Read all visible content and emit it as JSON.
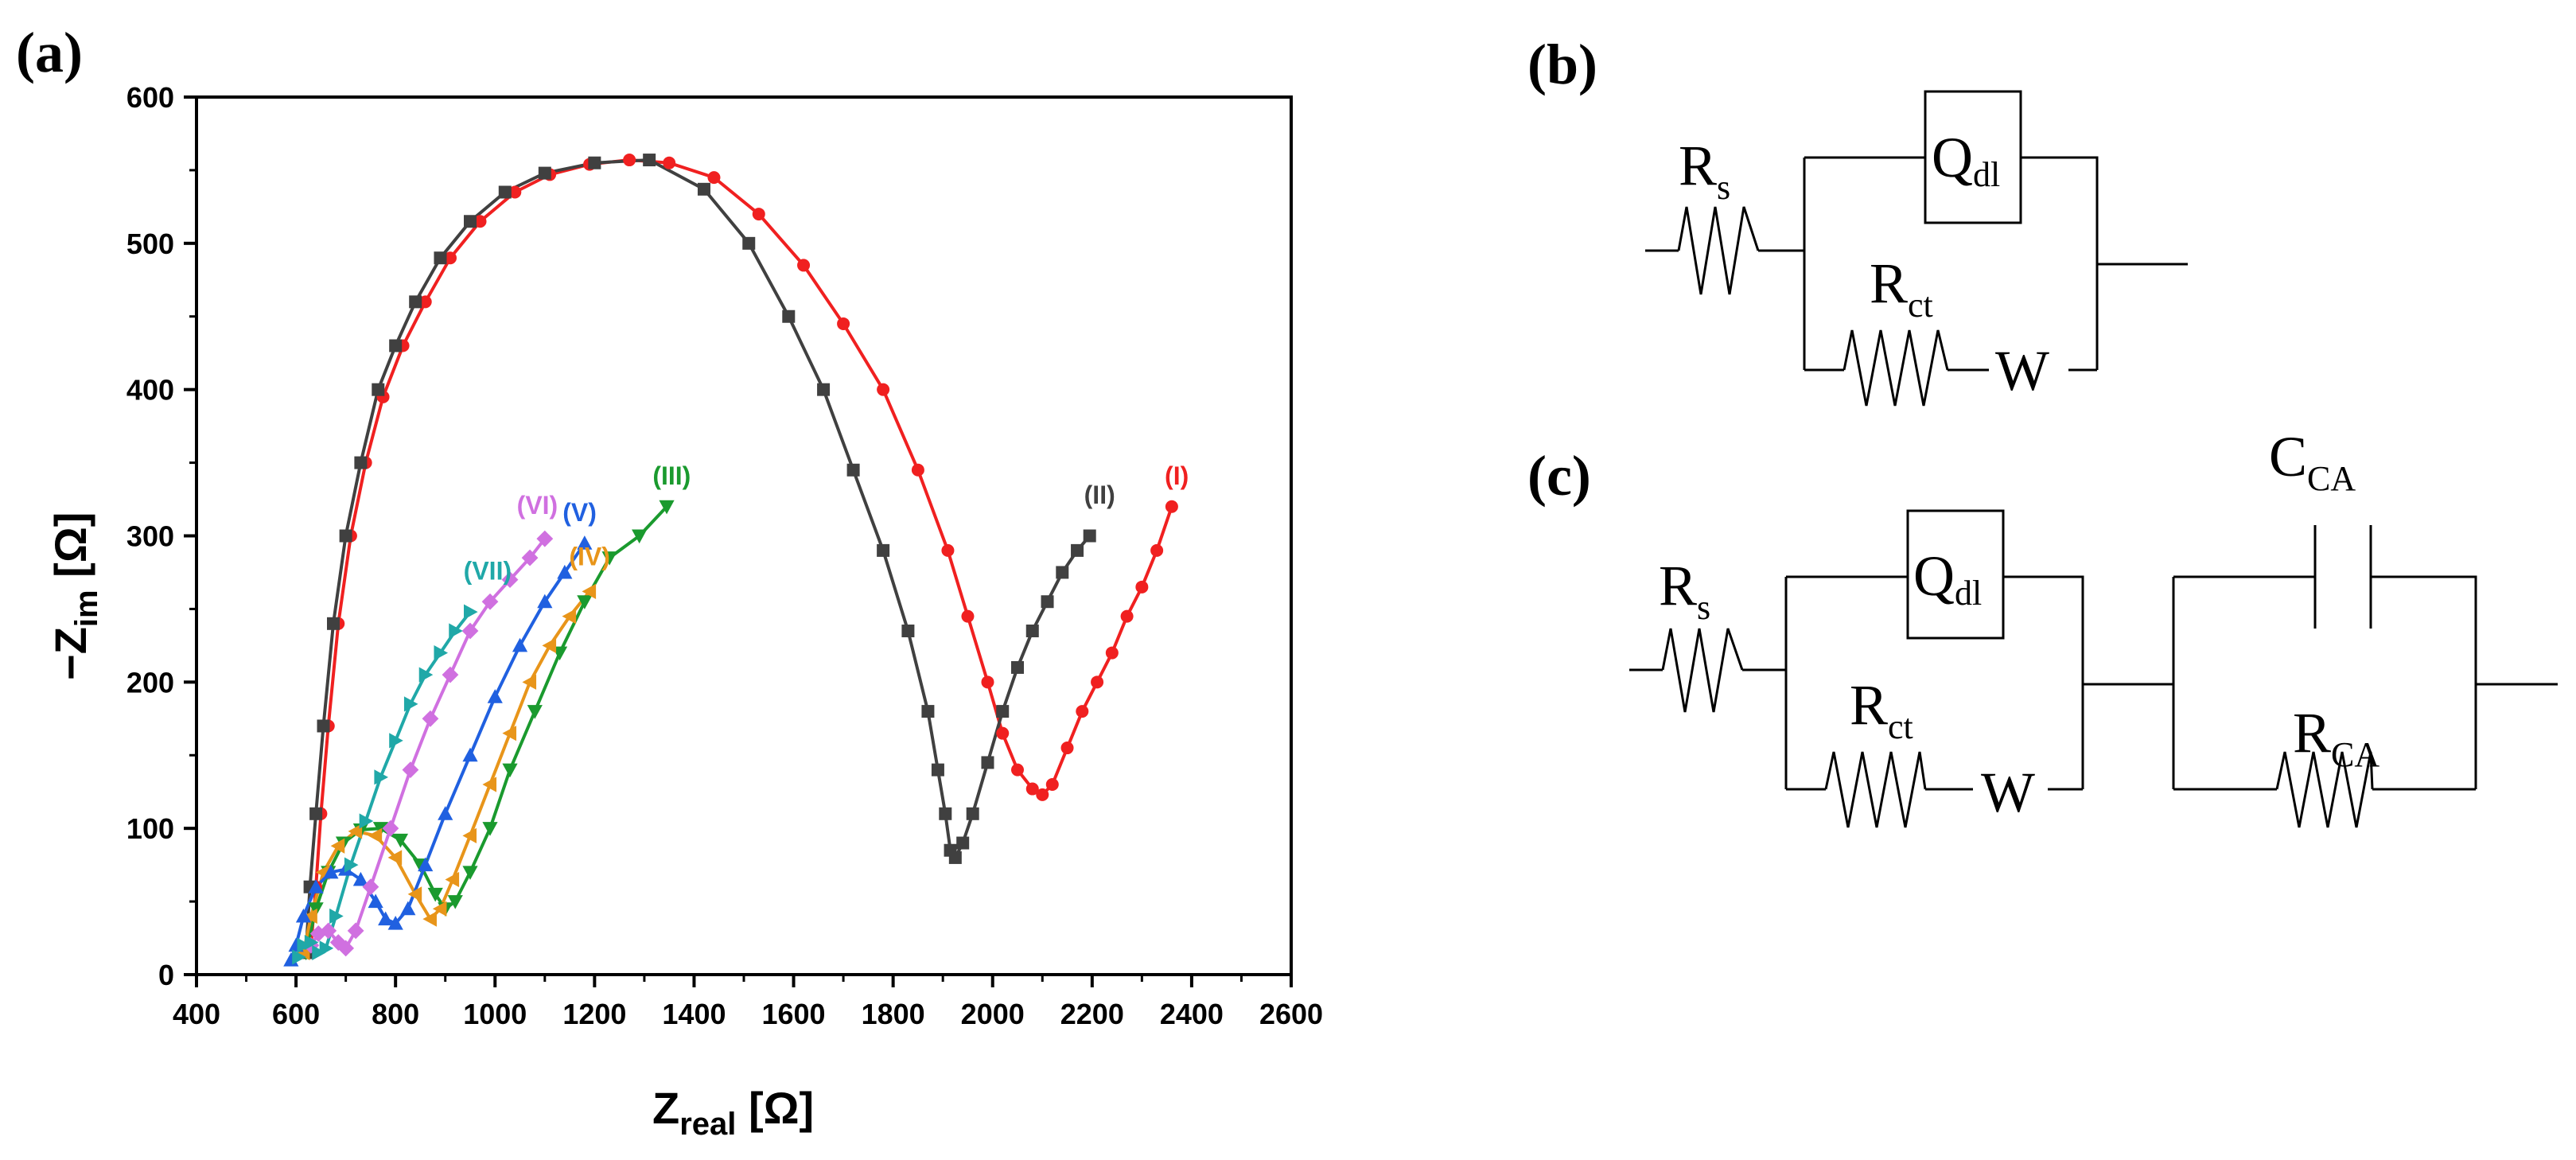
{
  "panels": {
    "a": "(a)",
    "b": "(b)",
    "c": "(c)"
  },
  "circuit_b": {
    "Rs": {
      "main": "R",
      "sub": "s"
    },
    "Qdl": {
      "main": "Q",
      "sub": "dl"
    },
    "Rct": {
      "main": "R",
      "sub": "ct"
    },
    "W": "W"
  },
  "circuit_c": {
    "Rs": {
      "main": "R",
      "sub": "s"
    },
    "Qdl": {
      "main": "Q",
      "sub": "dl"
    },
    "Rct": {
      "main": "R",
      "sub": "ct"
    },
    "W": "W",
    "CCA": {
      "main": "C",
      "sub": "CA"
    },
    "RCA": {
      "main": "R",
      "sub": "CA"
    }
  },
  "chart_data": {
    "type": "scatter",
    "title": "",
    "xlabel": {
      "main": "Z",
      "sub": "real",
      "unit": " [Ω]"
    },
    "ylabel": {
      "main": "−Z",
      "sub": "im",
      "unit": " [Ω]"
    },
    "xlim": [
      400,
      2600
    ],
    "ylim": [
      0,
      600
    ],
    "xticks": [
      400,
      600,
      800,
      1000,
      1200,
      1400,
      1600,
      1800,
      2000,
      2200,
      2400,
      2600
    ],
    "yticks": [
      0,
      100,
      200,
      300,
      400,
      500,
      600
    ],
    "series": [
      {
        "name": "(I)",
        "color": "#f02020",
        "marker": "circle",
        "label_pos": [
          2370,
          335
        ],
        "points": [
          [
            630,
            20
          ],
          [
            640,
            60
          ],
          [
            650,
            110
          ],
          [
            665,
            170
          ],
          [
            685,
            240
          ],
          [
            710,
            300
          ],
          [
            740,
            350
          ],
          [
            775,
            395
          ],
          [
            815,
            430
          ],
          [
            860,
            460
          ],
          [
            910,
            490
          ],
          [
            970,
            515
          ],
          [
            1040,
            535
          ],
          [
            1110,
            547
          ],
          [
            1190,
            554
          ],
          [
            1270,
            557
          ],
          [
            1350,
            555
          ],
          [
            1440,
            545
          ],
          [
            1530,
            520
          ],
          [
            1620,
            485
          ],
          [
            1700,
            445
          ],
          [
            1780,
            400
          ],
          [
            1850,
            345
          ],
          [
            1910,
            290
          ],
          [
            1950,
            245
          ],
          [
            1990,
            200
          ],
          [
            2020,
            165
          ],
          [
            2050,
            140
          ],
          [
            2080,
            127
          ],
          [
            2100,
            123
          ],
          [
            2120,
            130
          ],
          [
            2150,
            155
          ],
          [
            2180,
            180
          ],
          [
            2210,
            200
          ],
          [
            2240,
            220
          ],
          [
            2270,
            245
          ],
          [
            2300,
            265
          ],
          [
            2330,
            290
          ],
          [
            2360,
            320
          ]
        ]
      },
      {
        "name": "(II)",
        "color": "#404040",
        "marker": "square",
        "label_pos": [
          2215,
          322
        ],
        "points": [
          [
            620,
            15
          ],
          [
            628,
            60
          ],
          [
            640,
            110
          ],
          [
            655,
            170
          ],
          [
            675,
            240
          ],
          [
            700,
            300
          ],
          [
            730,
            350
          ],
          [
            765,
            400
          ],
          [
            800,
            430
          ],
          [
            840,
            460
          ],
          [
            890,
            490
          ],
          [
            950,
            515
          ],
          [
            1020,
            535
          ],
          [
            1100,
            548
          ],
          [
            1200,
            555
          ],
          [
            1310,
            557
          ],
          [
            1420,
            537
          ],
          [
            1510,
            500
          ],
          [
            1590,
            450
          ],
          [
            1660,
            400
          ],
          [
            1720,
            345
          ],
          [
            1780,
            290
          ],
          [
            1830,
            235
          ],
          [
            1870,
            180
          ],
          [
            1890,
            140
          ],
          [
            1905,
            110
          ],
          [
            1915,
            85
          ],
          [
            1925,
            80
          ],
          [
            1940,
            90
          ],
          [
            1960,
            110
          ],
          [
            1990,
            145
          ],
          [
            2020,
            180
          ],
          [
            2050,
            210
          ],
          [
            2080,
            235
          ],
          [
            2110,
            255
          ],
          [
            2140,
            275
          ],
          [
            2170,
            290
          ],
          [
            2195,
            300
          ]
        ]
      },
      {
        "name": "(III)",
        "color": "#1a9a2e",
        "marker": "triangle-down",
        "label_pos": [
          1355,
          335
        ],
        "points": [
          [
            620,
            15
          ],
          [
            640,
            45
          ],
          [
            665,
            70
          ],
          [
            695,
            90
          ],
          [
            730,
            99
          ],
          [
            770,
            100
          ],
          [
            810,
            92
          ],
          [
            850,
            75
          ],
          [
            880,
            55
          ],
          [
            900,
            45
          ],
          [
            920,
            50
          ],
          [
            950,
            70
          ],
          [
            990,
            100
          ],
          [
            1030,
            140
          ],
          [
            1080,
            180
          ],
          [
            1130,
            220
          ],
          [
            1180,
            255
          ],
          [
            1230,
            285
          ],
          [
            1290,
            300
          ],
          [
            1345,
            320
          ]
        ]
      },
      {
        "name": "(IV)",
        "color": "#e8951a",
        "marker": "triangle-left",
        "label_pos": [
          1190,
          280
        ],
        "points": [
          [
            615,
            15
          ],
          [
            630,
            40
          ],
          [
            655,
            70
          ],
          [
            685,
            88
          ],
          [
            720,
            98
          ],
          [
            760,
            95
          ],
          [
            800,
            80
          ],
          [
            840,
            55
          ],
          [
            870,
            38
          ],
          [
            890,
            45
          ],
          [
            915,
            65
          ],
          [
            950,
            95
          ],
          [
            990,
            130
          ],
          [
            1030,
            165
          ],
          [
            1070,
            200
          ],
          [
            1110,
            225
          ],
          [
            1150,
            245
          ],
          [
            1190,
            262
          ]
        ]
      },
      {
        "name": "(V)",
        "color": "#2060e0",
        "marker": "triangle-up",
        "label_pos": [
          1170,
          310
        ],
        "points": [
          [
            590,
            10
          ],
          [
            600,
            20
          ],
          [
            615,
            40
          ],
          [
            640,
            60
          ],
          [
            670,
            70
          ],
          [
            700,
            72
          ],
          [
            730,
            65
          ],
          [
            760,
            50
          ],
          [
            780,
            38
          ],
          [
            800,
            35
          ],
          [
            825,
            45
          ],
          [
            860,
            75
          ],
          [
            900,
            110
          ],
          [
            950,
            150
          ],
          [
            1000,
            190
          ],
          [
            1050,
            225
          ],
          [
            1100,
            255
          ],
          [
            1140,
            275
          ],
          [
            1180,
            295
          ]
        ]
      },
      {
        "name": "(VI)",
        "color": "#d070e0",
        "marker": "diamond",
        "label_pos": [
          1085,
          315
        ],
        "points": [
          [
            630,
            20
          ],
          [
            645,
            28
          ],
          [
            665,
            30
          ],
          [
            685,
            22
          ],
          [
            700,
            18
          ],
          [
            720,
            30
          ],
          [
            750,
            60
          ],
          [
            790,
            100
          ],
          [
            830,
            140
          ],
          [
            870,
            175
          ],
          [
            910,
            205
          ],
          [
            950,
            235
          ],
          [
            990,
            255
          ],
          [
            1030,
            270
          ],
          [
            1070,
            285
          ],
          [
            1100,
            298
          ]
        ]
      },
      {
        "name": "(VII)",
        "color": "#20a8a8",
        "marker": "triangle-right",
        "label_pos": [
          985,
          270
        ],
        "points": [
          [
            605,
            12
          ],
          [
            615,
            20
          ],
          [
            630,
            22
          ],
          [
            645,
            15
          ],
          [
            660,
            18
          ],
          [
            680,
            40
          ],
          [
            710,
            75
          ],
          [
            740,
            105
          ],
          [
            770,
            135
          ],
          [
            800,
            160
          ],
          [
            830,
            185
          ],
          [
            860,
            205
          ],
          [
            890,
            220
          ],
          [
            920,
            235
          ],
          [
            950,
            248
          ]
        ]
      }
    ]
  }
}
